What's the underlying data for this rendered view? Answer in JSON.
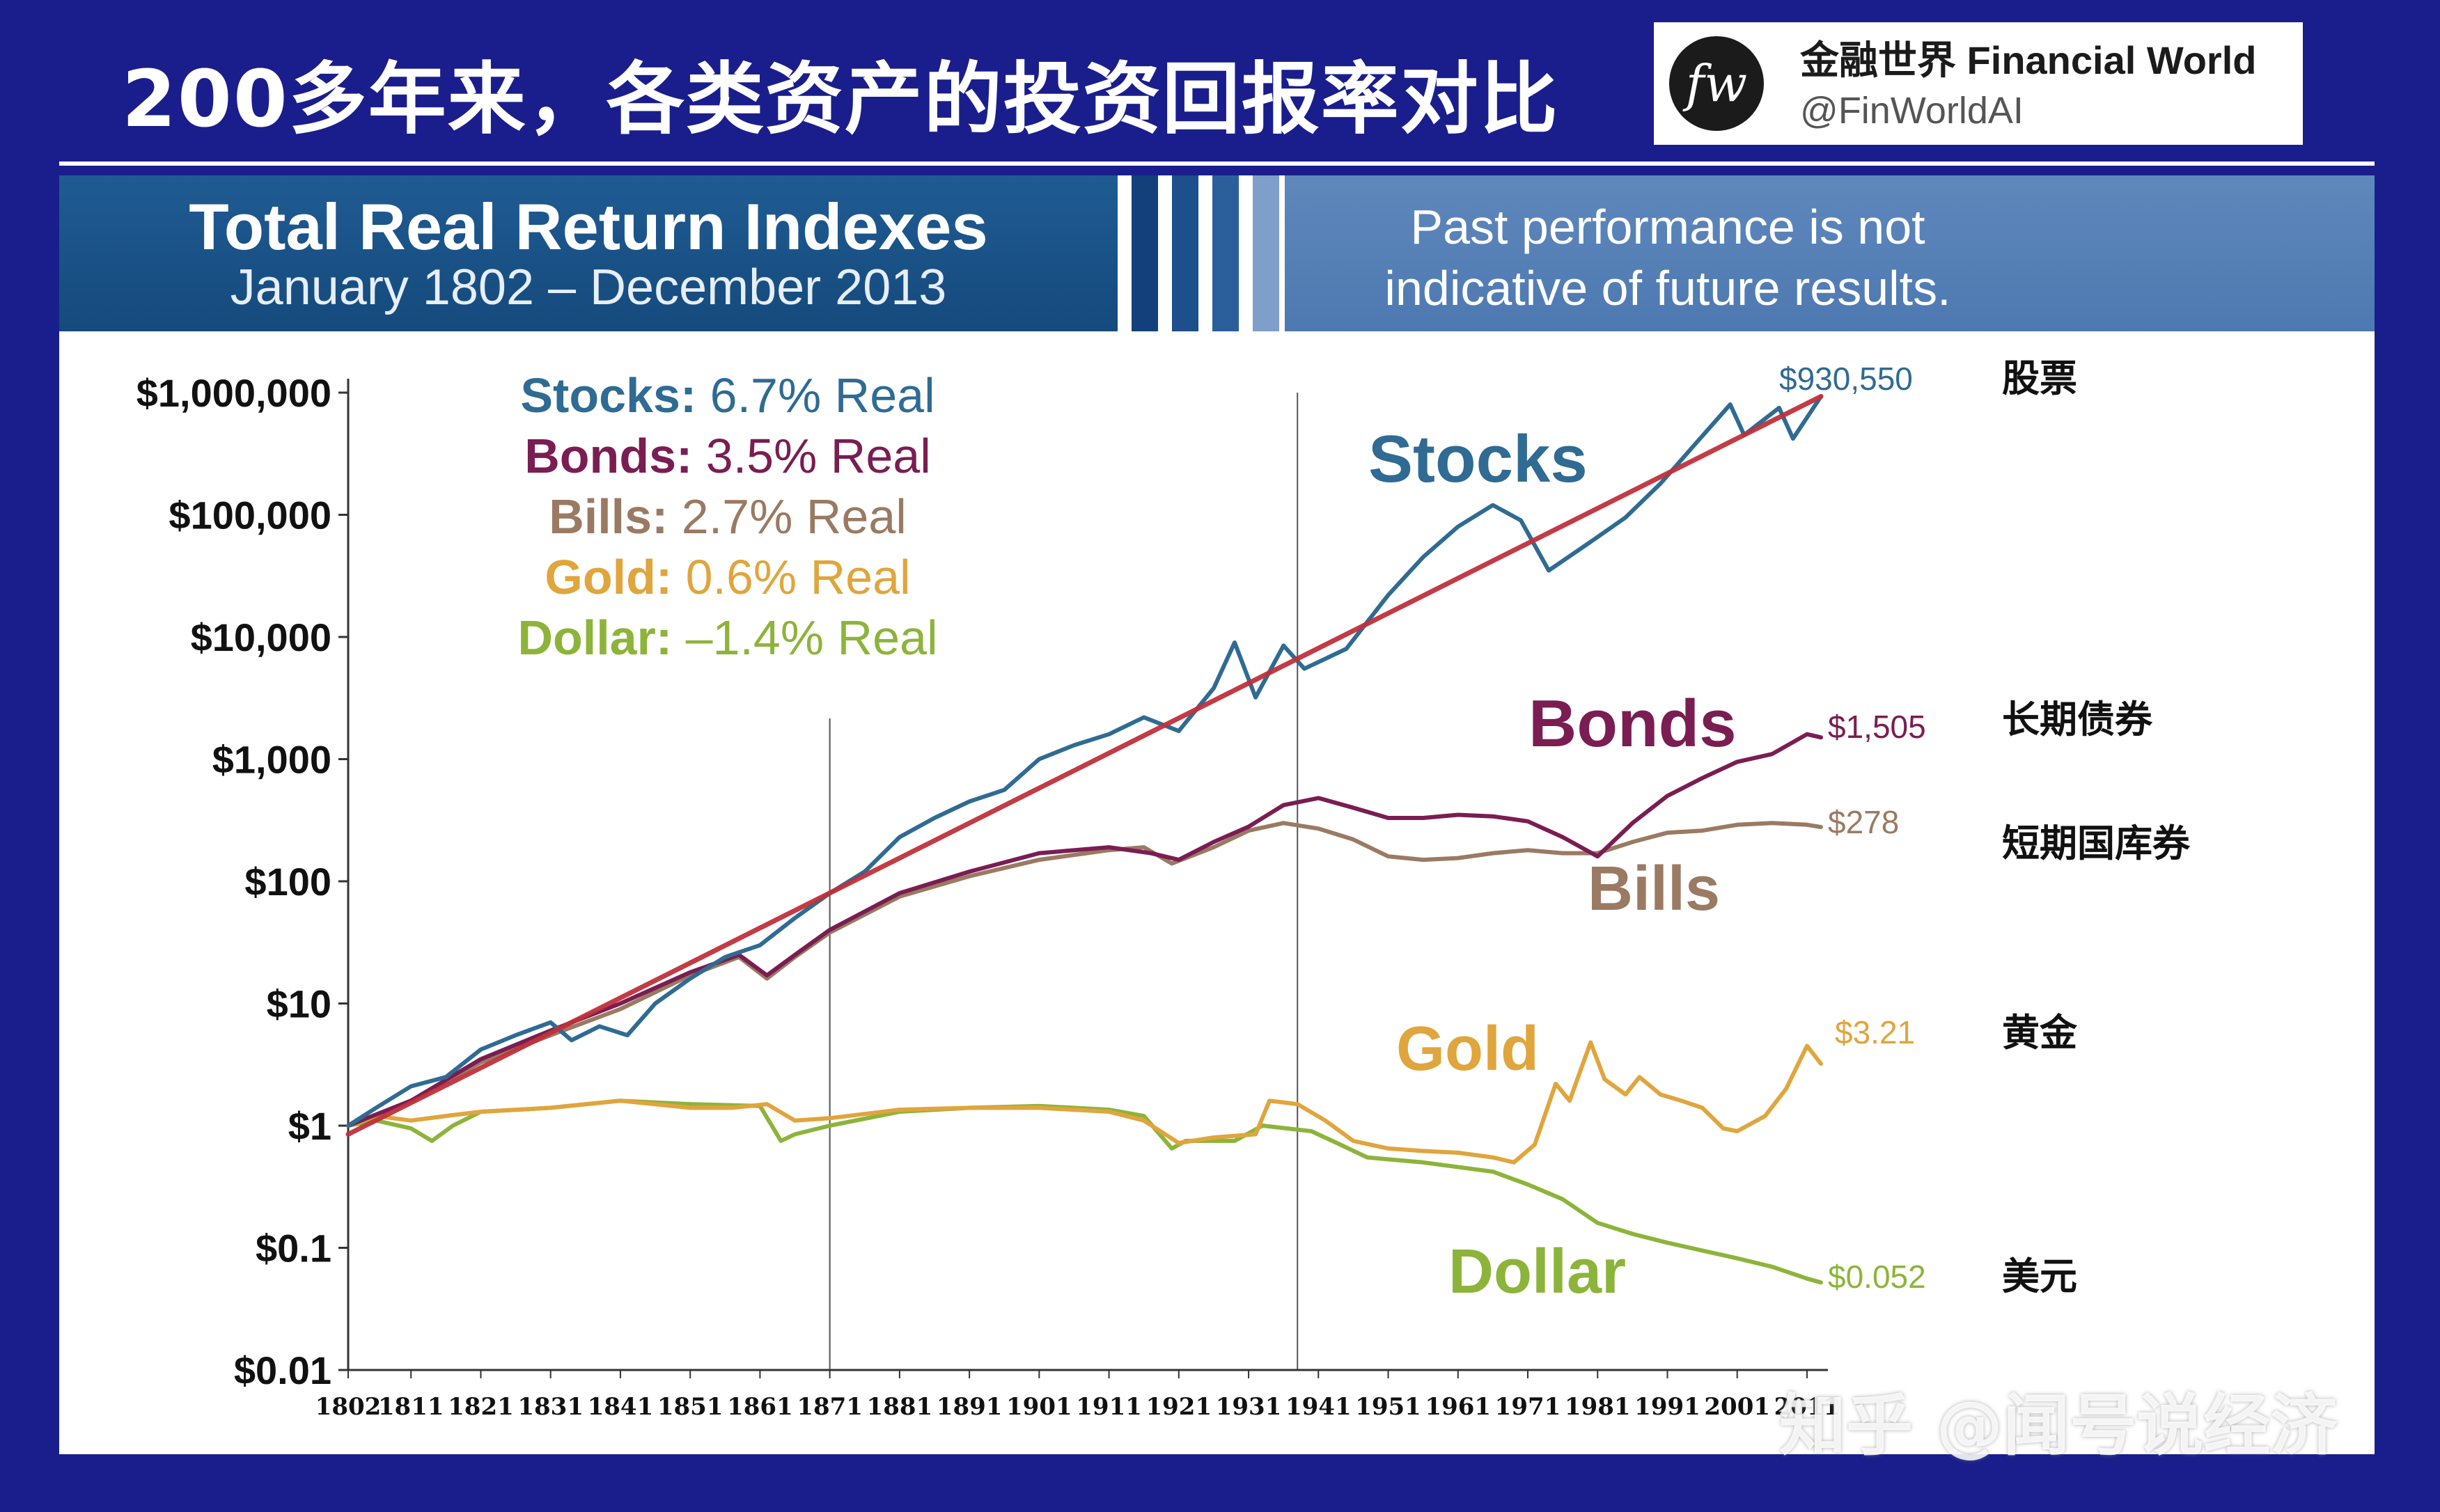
{
  "header": {
    "title": "200多年来，各类资产的投资回报率对比"
  },
  "brand": {
    "logo_text": "fw",
    "name": "金融世界 Financial World",
    "handle": "@FinWorldAI"
  },
  "banner": {
    "title": "Total Real Return Indexes",
    "subtitle": "January 1802 – December 2013",
    "note_line1": "Past performance is not",
    "note_line2": "indicative of future results."
  },
  "watermark": "知乎 @闻号说经济",
  "colors": {
    "stocks": "#2f6b93",
    "bonds": "#7a1d52",
    "bills": "#9a7a62",
    "gold": "#e0a53c",
    "dollar": "#8db43a",
    "trend": "#c0303a",
    "panel_bg": "#ffffff",
    "page_bg": "#1a1e8c"
  },
  "chart_data": {
    "type": "line",
    "y_scale": "log",
    "ylim": [
      0.01,
      1000000
    ],
    "y_ticks": [
      {
        "value": 1000000,
        "label": "$1,000,000"
      },
      {
        "value": 100000,
        "label": "$100,000"
      },
      {
        "value": 10000,
        "label": "$10,000"
      },
      {
        "value": 1000,
        "label": "$1,000"
      },
      {
        "value": 100,
        "label": "$100"
      },
      {
        "value": 10,
        "label": "$10"
      },
      {
        "value": 1,
        "label": "$1"
      },
      {
        "value": 0.1,
        "label": "$0.1"
      },
      {
        "value": 0.01,
        "label": "$0.01"
      }
    ],
    "xlim": [
      1802,
      2013
    ],
    "x_ticks": [
      1802,
      1811,
      1821,
      1831,
      1841,
      1851,
      1861,
      1871,
      1881,
      1891,
      1901,
      1911,
      1921,
      1931,
      1941,
      1951,
      1961,
      1971,
      1981,
      1991,
      2001,
      2011
    ],
    "vertical_lines": [
      1871,
      1938
    ],
    "legend": [
      {
        "key": "stocks",
        "name": "Stocks:",
        "value": " 6.7% Real"
      },
      {
        "key": "bonds",
        "name": "Bonds:",
        "value": " 3.5% Real"
      },
      {
        "key": "bills",
        "name": "Bills:",
        "value": " 2.7% Real"
      },
      {
        "key": "gold",
        "name": "Gold:",
        "value": " 0.6% Real"
      },
      {
        "key": "dollar",
        "name": "Dollar:",
        "value": " –1.4% Real"
      }
    ],
    "legend_position": "top-left",
    "series": [
      {
        "key": "stocks",
        "name": "Stocks",
        "end_label": "$930,550",
        "cn_label": "股票",
        "points": [
          [
            1802,
            1
          ],
          [
            1806,
            1.4
          ],
          [
            1811,
            2.1
          ],
          [
            1816,
            2.5
          ],
          [
            1821,
            4.2
          ],
          [
            1826,
            5.5
          ],
          [
            1831,
            7
          ],
          [
            1834,
            5
          ],
          [
            1838,
            6.5
          ],
          [
            1842,
            5.5
          ],
          [
            1846,
            10
          ],
          [
            1851,
            16
          ],
          [
            1856,
            24
          ],
          [
            1861,
            30
          ],
          [
            1866,
            50
          ],
          [
            1871,
            80
          ],
          [
            1876,
            120
          ],
          [
            1881,
            230
          ],
          [
            1886,
            330
          ],
          [
            1891,
            450
          ],
          [
            1896,
            560
          ],
          [
            1901,
            1000
          ],
          [
            1906,
            1300
          ],
          [
            1911,
            1600
          ],
          [
            1916,
            2200
          ],
          [
            1921,
            1700
          ],
          [
            1926,
            3800
          ],
          [
            1929,
            9000
          ],
          [
            1932,
            3200
          ],
          [
            1936,
            8500
          ],
          [
            1939,
            5500
          ],
          [
            1945,
            8000
          ],
          [
            1951,
            22000
          ],
          [
            1956,
            45000
          ],
          [
            1961,
            80000
          ],
          [
            1966,
            120000
          ],
          [
            1970,
            90000
          ],
          [
            1974,
            35000
          ],
          [
            1980,
            60000
          ],
          [
            1985,
            95000
          ],
          [
            1990,
            180000
          ],
          [
            1995,
            380000
          ],
          [
            2000,
            800000
          ],
          [
            2002,
            450000
          ],
          [
            2007,
            750000
          ],
          [
            2009,
            420000
          ],
          [
            2013,
            930550
          ]
        ]
      },
      {
        "key": "bonds",
        "name": "Bonds",
        "end_label": "$1,505",
        "cn_label": "长期债券",
        "points": [
          [
            1802,
            1
          ],
          [
            1811,
            1.6
          ],
          [
            1821,
            3.5
          ],
          [
            1831,
            6
          ],
          [
            1841,
            10
          ],
          [
            1851,
            18
          ],
          [
            1858,
            25
          ],
          [
            1862,
            17
          ],
          [
            1866,
            25
          ],
          [
            1871,
            40
          ],
          [
            1881,
            80
          ],
          [
            1891,
            120
          ],
          [
            1901,
            170
          ],
          [
            1911,
            190
          ],
          [
            1917,
            170
          ],
          [
            1921,
            150
          ],
          [
            1926,
            210
          ],
          [
            1931,
            280
          ],
          [
            1936,
            420
          ],
          [
            1941,
            480
          ],
          [
            1946,
            400
          ],
          [
            1951,
            330
          ],
          [
            1956,
            330
          ],
          [
            1961,
            350
          ],
          [
            1966,
            340
          ],
          [
            1971,
            310
          ],
          [
            1976,
            230
          ],
          [
            1981,
            160
          ],
          [
            1986,
            300
          ],
          [
            1991,
            500
          ],
          [
            1996,
            700
          ],
          [
            2001,
            950
          ],
          [
            2006,
            1100
          ],
          [
            2011,
            1600
          ],
          [
            2013,
            1505
          ]
        ]
      },
      {
        "key": "bills",
        "name": "Bills",
        "end_label": "$278",
        "cn_label": "短期国库券",
        "points": [
          [
            1802,
            1
          ],
          [
            1811,
            1.6
          ],
          [
            1821,
            3.3
          ],
          [
            1831,
            5.5
          ],
          [
            1841,
            9
          ],
          [
            1851,
            17
          ],
          [
            1858,
            24
          ],
          [
            1862,
            16
          ],
          [
            1866,
            24
          ],
          [
            1871,
            38
          ],
          [
            1881,
            75
          ],
          [
            1891,
            110
          ],
          [
            1901,
            150
          ],
          [
            1911,
            180
          ],
          [
            1916,
            190
          ],
          [
            1920,
            140
          ],
          [
            1926,
            190
          ],
          [
            1931,
            260
          ],
          [
            1936,
            300
          ],
          [
            1941,
            270
          ],
          [
            1946,
            220
          ],
          [
            1951,
            160
          ],
          [
            1956,
            150
          ],
          [
            1961,
            155
          ],
          [
            1966,
            170
          ],
          [
            1971,
            180
          ],
          [
            1976,
            170
          ],
          [
            1981,
            170
          ],
          [
            1986,
            210
          ],
          [
            1991,
            250
          ],
          [
            1996,
            260
          ],
          [
            2001,
            290
          ],
          [
            2006,
            300
          ],
          [
            2011,
            290
          ],
          [
            2013,
            278
          ]
        ]
      },
      {
        "key": "gold",
        "name": "Gold",
        "end_label": "$3.21",
        "cn_label": "黄金",
        "points": [
          [
            1802,
            1
          ],
          [
            1806,
            1.2
          ],
          [
            1811,
            1.1
          ],
          [
            1816,
            1.2
          ],
          [
            1821,
            1.3
          ],
          [
            1831,
            1.4
          ],
          [
            1841,
            1.6
          ],
          [
            1851,
            1.4
          ],
          [
            1857,
            1.4
          ],
          [
            1862,
            1.5
          ],
          [
            1866,
            1.1
          ],
          [
            1871,
            1.15
          ],
          [
            1881,
            1.35
          ],
          [
            1891,
            1.4
          ],
          [
            1901,
            1.4
          ],
          [
            1911,
            1.3
          ],
          [
            1916,
            1.1
          ],
          [
            1921,
            0.72
          ],
          [
            1926,
            0.8
          ],
          [
            1932,
            0.85
          ],
          [
            1934,
            1.6
          ],
          [
            1938,
            1.5
          ],
          [
            1942,
            1.1
          ],
          [
            1946,
            0.75
          ],
          [
            1951,
            0.65
          ],
          [
            1956,
            0.62
          ],
          [
            1961,
            0.6
          ],
          [
            1966,
            0.55
          ],
          [
            1969,
            0.5
          ],
          [
            1972,
            0.7
          ],
          [
            1975,
            2.2
          ],
          [
            1977,
            1.6
          ],
          [
            1980,
            4.8
          ],
          [
            1982,
            2.4
          ],
          [
            1985,
            1.8
          ],
          [
            1987,
            2.5
          ],
          [
            1990,
            1.8
          ],
          [
            1993,
            1.6
          ],
          [
            1996,
            1.4
          ],
          [
            1999,
            0.95
          ],
          [
            2001,
            0.9
          ],
          [
            2005,
            1.2
          ],
          [
            2008,
            2.0
          ],
          [
            2011,
            4.5
          ],
          [
            2013,
            3.21
          ]
        ]
      },
      {
        "key": "dollar",
        "name": "Dollar",
        "end_label": "$0.052",
        "cn_label": "美元",
        "points": [
          [
            1802,
            1
          ],
          [
            1806,
            1.1
          ],
          [
            1811,
            0.95
          ],
          [
            1814,
            0.75
          ],
          [
            1817,
            1.0
          ],
          [
            1821,
            1.3
          ],
          [
            1831,
            1.4
          ],
          [
            1841,
            1.6
          ],
          [
            1851,
            1.5
          ],
          [
            1861,
            1.45
          ],
          [
            1864,
            0.75
          ],
          [
            1866,
            0.85
          ],
          [
            1871,
            1.0
          ],
          [
            1881,
            1.3
          ],
          [
            1891,
            1.4
          ],
          [
            1901,
            1.45
          ],
          [
            1911,
            1.35
          ],
          [
            1916,
            1.2
          ],
          [
            1920,
            0.65
          ],
          [
            1922,
            0.75
          ],
          [
            1929,
            0.75
          ],
          [
            1933,
            1.0
          ],
          [
            1940,
            0.9
          ],
          [
            1943,
            0.75
          ],
          [
            1948,
            0.55
          ],
          [
            1956,
            0.5
          ],
          [
            1966,
            0.42
          ],
          [
            1971,
            0.33
          ],
          [
            1976,
            0.25
          ],
          [
            1981,
            0.16
          ],
          [
            1986,
            0.13
          ],
          [
            1991,
            0.11
          ],
          [
            1996,
            0.095
          ],
          [
            2001,
            0.082
          ],
          [
            2006,
            0.07
          ],
          [
            2011,
            0.056
          ],
          [
            2013,
            0.052
          ]
        ]
      },
      {
        "key": "trend",
        "name": "",
        "end_label": "",
        "cn_label": "",
        "points": [
          [
            1802,
            0.85
          ],
          [
            2013,
            930550
          ]
        ]
      }
    ],
    "inline_labels": [
      {
        "key": "stocks",
        "text": "Stocks"
      },
      {
        "key": "bonds",
        "text": "Bonds"
      },
      {
        "key": "bills",
        "text": "Bills"
      },
      {
        "key": "gold",
        "text": "Gold"
      },
      {
        "key": "dollar",
        "text": "Dollar"
      }
    ]
  }
}
